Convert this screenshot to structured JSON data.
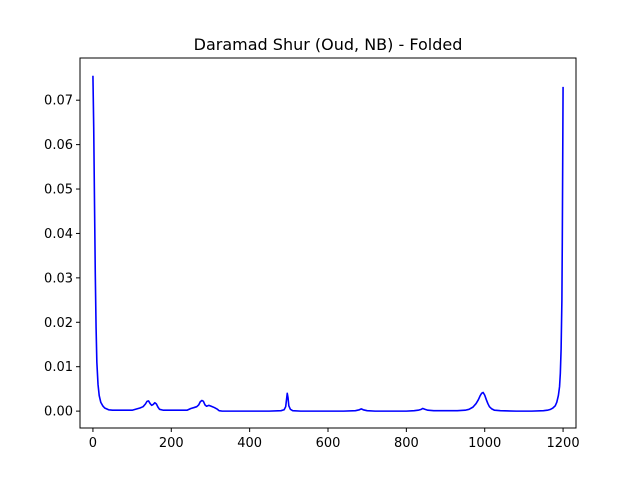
{
  "chart_data": {
    "type": "line",
    "title": "Daramad Shur (Oud, NB) - Folded",
    "xlabel": "",
    "ylabel": "",
    "xlim": [
      -33,
      1233
    ],
    "ylim": [
      -0.0038,
      0.0795
    ],
    "grid": false,
    "legend": "none",
    "x_ticks": [
      0,
      200,
      400,
      600,
      800,
      1000,
      1200
    ],
    "y_ticks": [
      0.0,
      0.01,
      0.02,
      0.03,
      0.04,
      0.05,
      0.06,
      0.07
    ],
    "y_tick_labels": [
      "0.00",
      "0.01",
      "0.02",
      "0.03",
      "0.04",
      "0.05",
      "0.06",
      "0.07"
    ],
    "series": [
      {
        "color": "#0000ff",
        "x": [
          0,
          2,
          4,
          6,
          8,
          10,
          13,
          16,
          20,
          25,
          30,
          40,
          50,
          60,
          80,
          100,
          120,
          128,
          134,
          138,
          142,
          146,
          150,
          154,
          158,
          162,
          166,
          170,
          180,
          200,
          220,
          240,
          250,
          258,
          265,
          270,
          274,
          278,
          282,
          286,
          290,
          296,
          302,
          310,
          318,
          322,
          330,
          360,
          400,
          450,
          480,
          488,
          492,
          494,
          496,
          498,
          500,
          504,
          510,
          530,
          560,
          600,
          640,
          670,
          680,
          685,
          690,
          700,
          720,
          760,
          800,
          820,
          830,
          838,
          842,
          848,
          855,
          870,
          900,
          930,
          950,
          960,
          970,
          978,
          984,
          988,
          992,
          996,
          1000,
          1004,
          1008,
          1012,
          1018,
          1025,
          1040,
          1080,
          1120,
          1150,
          1160,
          1168,
          1174,
          1180,
          1184,
          1188,
          1191,
          1193,
          1195,
          1197,
          1198,
          1199,
          1200
        ],
        "y": [
          0.0755,
          0.064,
          0.047,
          0.031,
          0.019,
          0.011,
          0.006,
          0.0035,
          0.002,
          0.0012,
          0.0007,
          0.0003,
          0.0002,
          0.0002,
          0.0002,
          0.0002,
          0.0007,
          0.001,
          0.0016,
          0.0022,
          0.0023,
          0.0017,
          0.0013,
          0.0015,
          0.0019,
          0.0016,
          0.0009,
          0.0004,
          0.0002,
          0.0002,
          0.0002,
          0.0002,
          0.0006,
          0.0008,
          0.001,
          0.0014,
          0.0021,
          0.0024,
          0.0022,
          0.0014,
          0.0011,
          0.0013,
          0.0011,
          0.0008,
          0.0004,
          0.0001,
          0.0,
          0.0,
          0.0,
          0.0,
          0.0001,
          0.0003,
          0.001,
          0.0025,
          0.004,
          0.003,
          0.0012,
          0.0004,
          0.0001,
          0.0,
          0.0,
          0.0,
          0.0,
          0.0001,
          0.0003,
          0.0005,
          0.0003,
          0.0001,
          0.0,
          0.0,
          0.0,
          0.0001,
          0.0002,
          0.0004,
          0.0006,
          0.0004,
          0.0002,
          0.0001,
          0.0001,
          0.0001,
          0.0002,
          0.0004,
          0.0009,
          0.0017,
          0.0026,
          0.0034,
          0.004,
          0.0042,
          0.0036,
          0.0026,
          0.0017,
          0.001,
          0.0005,
          0.0002,
          0.0001,
          0.0,
          0.0,
          0.0001,
          0.0002,
          0.0004,
          0.0007,
          0.0012,
          0.002,
          0.0035,
          0.0055,
          0.0085,
          0.014,
          0.025,
          0.038,
          0.055,
          0.073
        ]
      }
    ]
  }
}
